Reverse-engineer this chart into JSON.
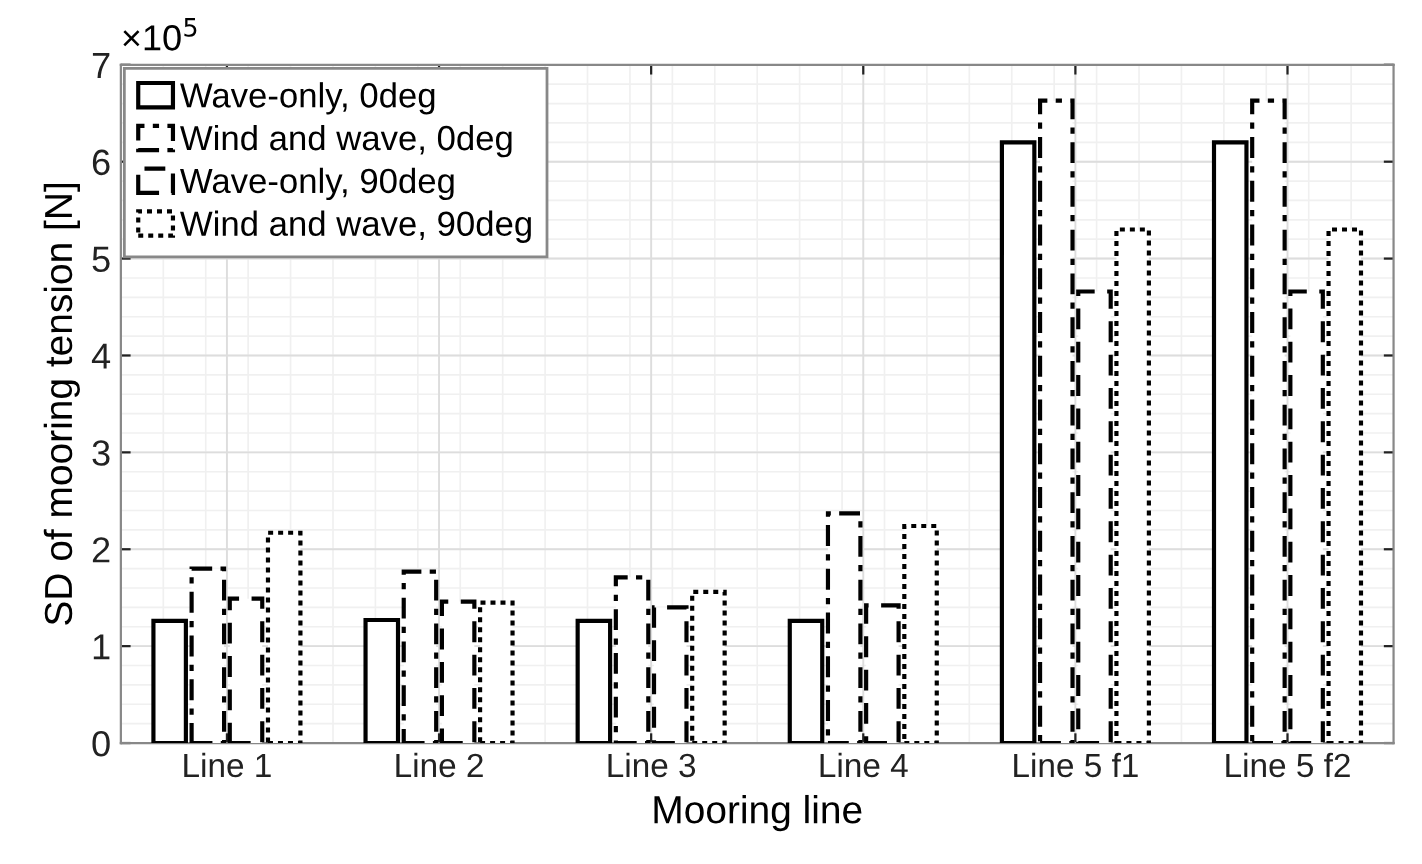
{
  "chart_data": {
    "type": "bar",
    "xlabel": "Mooring line",
    "ylabel": "SD of mooring tension [N]",
    "categories": [
      "Line 1",
      "Line 2",
      "Line 3",
      "Line 4",
      "Line 5 f1",
      "Line 5 f2"
    ],
    "series": [
      {
        "name": "Wave-only, 0deg",
        "color": "#000000",
        "line_style": "solid",
        "values": [
          1.26,
          1.27,
          1.26,
          1.26,
          6.2,
          6.2
        ]
      },
      {
        "name": "Wind and wave, 0deg",
        "color": "#000000",
        "line_style": "dashdot",
        "values": [
          1.8,
          1.77,
          1.71,
          2.37,
          6.63,
          6.63
        ]
      },
      {
        "name": "Wave-only, 90deg",
        "color": "#000000",
        "line_style": "dashed",
        "values": [
          1.49,
          1.46,
          1.4,
          1.42,
          4.66,
          4.66
        ]
      },
      {
        "name": "Wind and wave, 90deg",
        "color": "#000000",
        "line_style": "dotted",
        "values": [
          2.17,
          1.45,
          1.56,
          2.24,
          5.3,
          5.3
        ]
      }
    ],
    "ylim": [
      0,
      7
    ],
    "yticks": [
      0,
      1,
      2,
      3,
      4,
      5,
      6,
      7
    ],
    "annotations": [
      "×10$^{5}$"
    ],
    "grid": true,
    "legend": "top left"
  }
}
